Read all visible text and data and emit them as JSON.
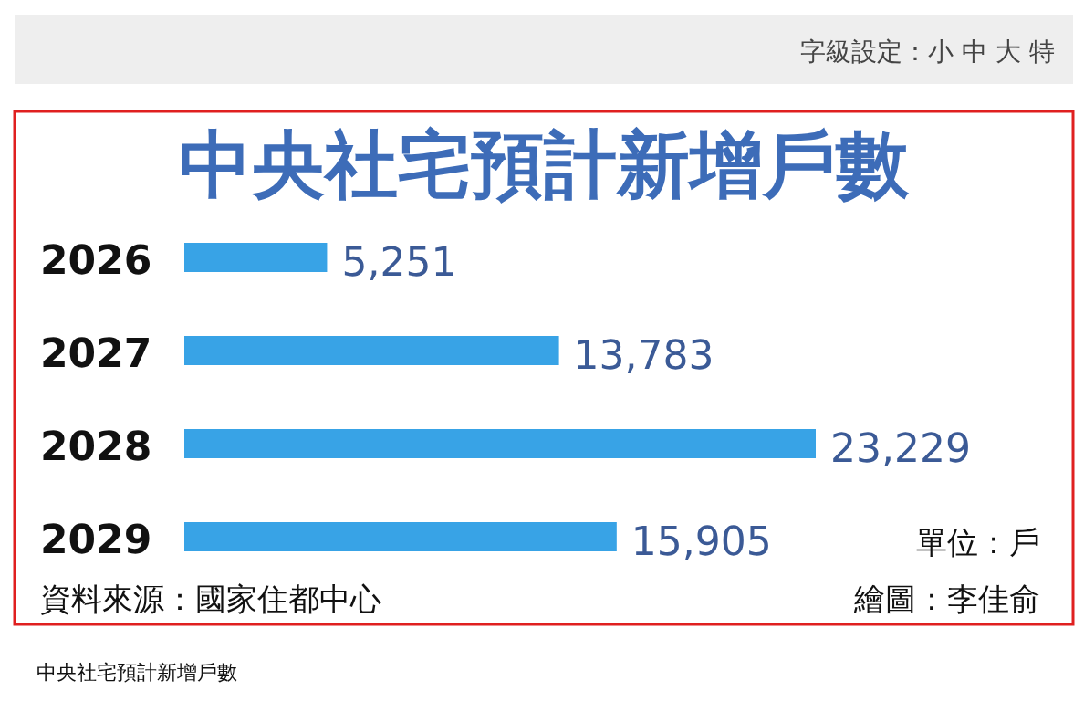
{
  "chart_data": {
    "type": "bar",
    "orientation": "horizontal",
    "title": "中央社宅預計新增戶數",
    "categories": [
      "2026",
      "2027",
      "2028",
      "2029"
    ],
    "values": [
      5251,
      13783,
      23229,
      15905
    ],
    "value_labels": [
      "5,251",
      "13,783",
      "23,229",
      "15,905"
    ],
    "color": "#38a3e6",
    "annotations": [
      "單位：戶",
      "資料來源：國家住都中心",
      "繪圖：李佳俞",
      "中央社宅預計新增戶數",
      "字級設定：小 中 大 特"
    ]
  }
}
